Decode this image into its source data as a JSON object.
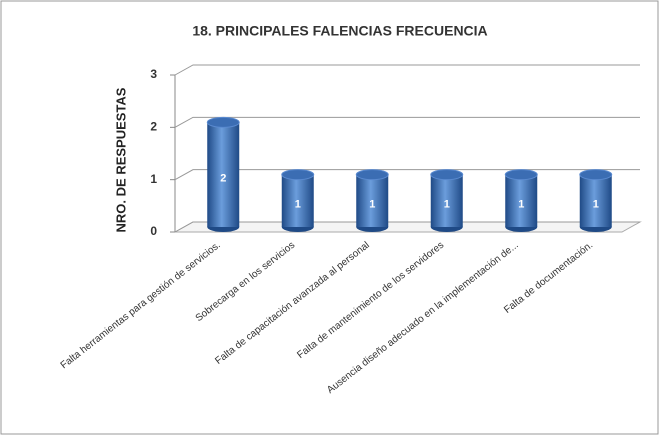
{
  "chart_data": {
    "type": "bar",
    "title": "18. PRINCIPALES FALENCIAS FRECUENCIA",
    "y_label": "NRO. DE RESPUESTAS",
    "categories": [
      "Falta herramientas para gestión de servicios.",
      "Sobrecarga en los servicios",
      "Falta de capacitación avanzada al personal",
      "Falta de mantenimiento de los servidores",
      "Ausencia diseño adecuado en la implementación de...",
      "Falta de documentación."
    ],
    "values": [
      2,
      1,
      1,
      1,
      1,
      1
    ],
    "color": "#3b6db3",
    "ylim": [
      0,
      3
    ],
    "yticks": [
      0,
      1,
      2,
      3
    ],
    "grid": true,
    "data_labels": true
  }
}
